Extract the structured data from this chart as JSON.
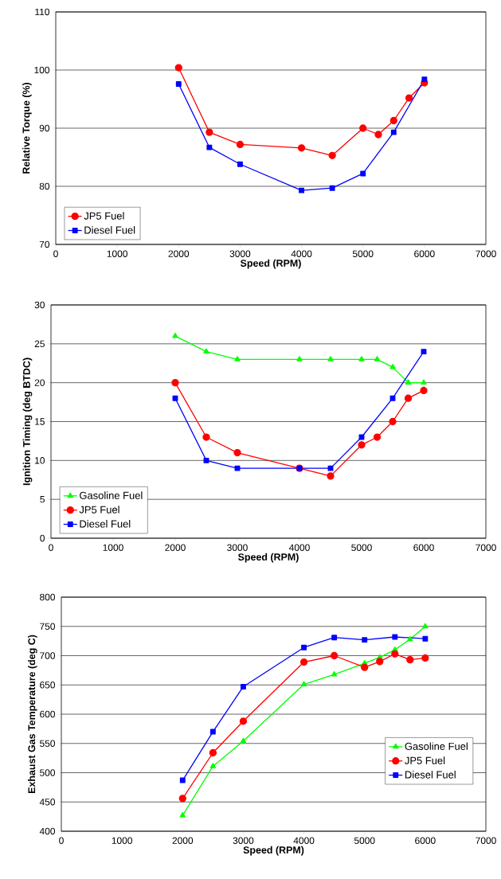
{
  "chart_data": [
    {
      "type": "line",
      "xlabel": "Speed (RPM)",
      "ylabel": "Relative Torque (%)",
      "xlim": [
        0,
        7000
      ],
      "xticks": [
        0,
        1000,
        2000,
        3000,
        4000,
        5000,
        6000,
        7000
      ],
      "ylim": [
        70,
        110
      ],
      "yticks": [
        70,
        80,
        90,
        100,
        110
      ],
      "grid": "y",
      "legend": "bottom left",
      "series": [
        {
          "name": "JP5 Fuel",
          "color": "#ff0000",
          "marker": "circle",
          "x": [
            2000,
            2500,
            3000,
            4000,
            4500,
            5000,
            5250,
            5500,
            5750,
            6000
          ],
          "values": [
            100.4,
            89.3,
            87.2,
            86.6,
            85.3,
            90.0,
            88.9,
            91.3,
            95.2,
            97.8
          ]
        },
        {
          "name": "Diesel Fuel",
          "color": "#0000ff",
          "marker": "square",
          "x": [
            2000,
            2500,
            3000,
            4000,
            4500,
            5000,
            5500,
            6000
          ],
          "values": [
            97.6,
            86.7,
            83.8,
            79.3,
            79.7,
            82.2,
            89.3,
            98.4
          ]
        }
      ]
    },
    {
      "type": "line",
      "xlabel": "Speed (RPM)",
      "ylabel": "Ignition Timing (deg BTDC)",
      "xlim": [
        0,
        7000
      ],
      "xticks": [
        0,
        1000,
        2000,
        3000,
        4000,
        5000,
        6000,
        7000
      ],
      "ylim": [
        0,
        30
      ],
      "yticks": [
        0,
        5,
        10,
        15,
        20,
        25,
        30
      ],
      "grid": "y",
      "legend": "bottom left",
      "series": [
        {
          "name": "Gasoline Fuel",
          "color": "#00ff00",
          "marker": "triangle",
          "x": [
            2000,
            2500,
            3000,
            4000,
            4500,
            5000,
            5250,
            5500,
            5750,
            6000
          ],
          "values": [
            26,
            24,
            23,
            23,
            23,
            23,
            23,
            22,
            20,
            20
          ]
        },
        {
          "name": "JP5 Fuel",
          "color": "#ff0000",
          "marker": "circle",
          "x": [
            2000,
            2500,
            3000,
            4000,
            4500,
            5000,
            5250,
            5500,
            5750,
            6000
          ],
          "values": [
            20,
            13,
            11,
            9,
            8,
            12,
            13,
            15,
            18,
            19
          ]
        },
        {
          "name": "Diesel Fuel",
          "color": "#0000ff",
          "marker": "square",
          "x": [
            2000,
            2500,
            3000,
            4000,
            4500,
            5000,
            5500,
            6000
          ],
          "values": [
            18,
            10,
            9,
            9,
            9,
            13,
            18,
            24
          ]
        }
      ]
    },
    {
      "type": "line",
      "xlabel": "Speed (RPM)",
      "ylabel": "Exhaust Gas Temperature (deg C)",
      "xlim": [
        0,
        7000
      ],
      "xticks": [
        0,
        1000,
        2000,
        3000,
        4000,
        5000,
        6000,
        7000
      ],
      "ylim": [
        400,
        800
      ],
      "yticks": [
        400,
        450,
        500,
        550,
        600,
        650,
        700,
        750,
        800
      ],
      "grid": "y",
      "legend": "bottom right",
      "series": [
        {
          "name": "Gasoline Fuel",
          "color": "#00ff00",
          "marker": "triangle",
          "x": [
            2000,
            2500,
            3000,
            4000,
            4500,
            5000,
            5250,
            5500,
            5750,
            6000
          ],
          "values": [
            427,
            511,
            554,
            651,
            668,
            687,
            697,
            710,
            728,
            750
          ]
        },
        {
          "name": "JP5 Fuel",
          "color": "#ff0000",
          "marker": "circle",
          "x": [
            2000,
            2500,
            3000,
            4000,
            4500,
            5000,
            5250,
            5500,
            5750,
            6000
          ],
          "values": [
            456,
            534,
            588,
            689,
            700,
            680,
            690,
            703,
            693,
            696
          ]
        },
        {
          "name": "Diesel Fuel",
          "color": "#0000ff",
          "marker": "square",
          "x": [
            2000,
            2500,
            3000,
            4000,
            4500,
            5000,
            5500,
            6000
          ],
          "values": [
            487,
            570,
            647,
            714,
            731,
            727,
            732,
            729
          ]
        }
      ]
    }
  ]
}
